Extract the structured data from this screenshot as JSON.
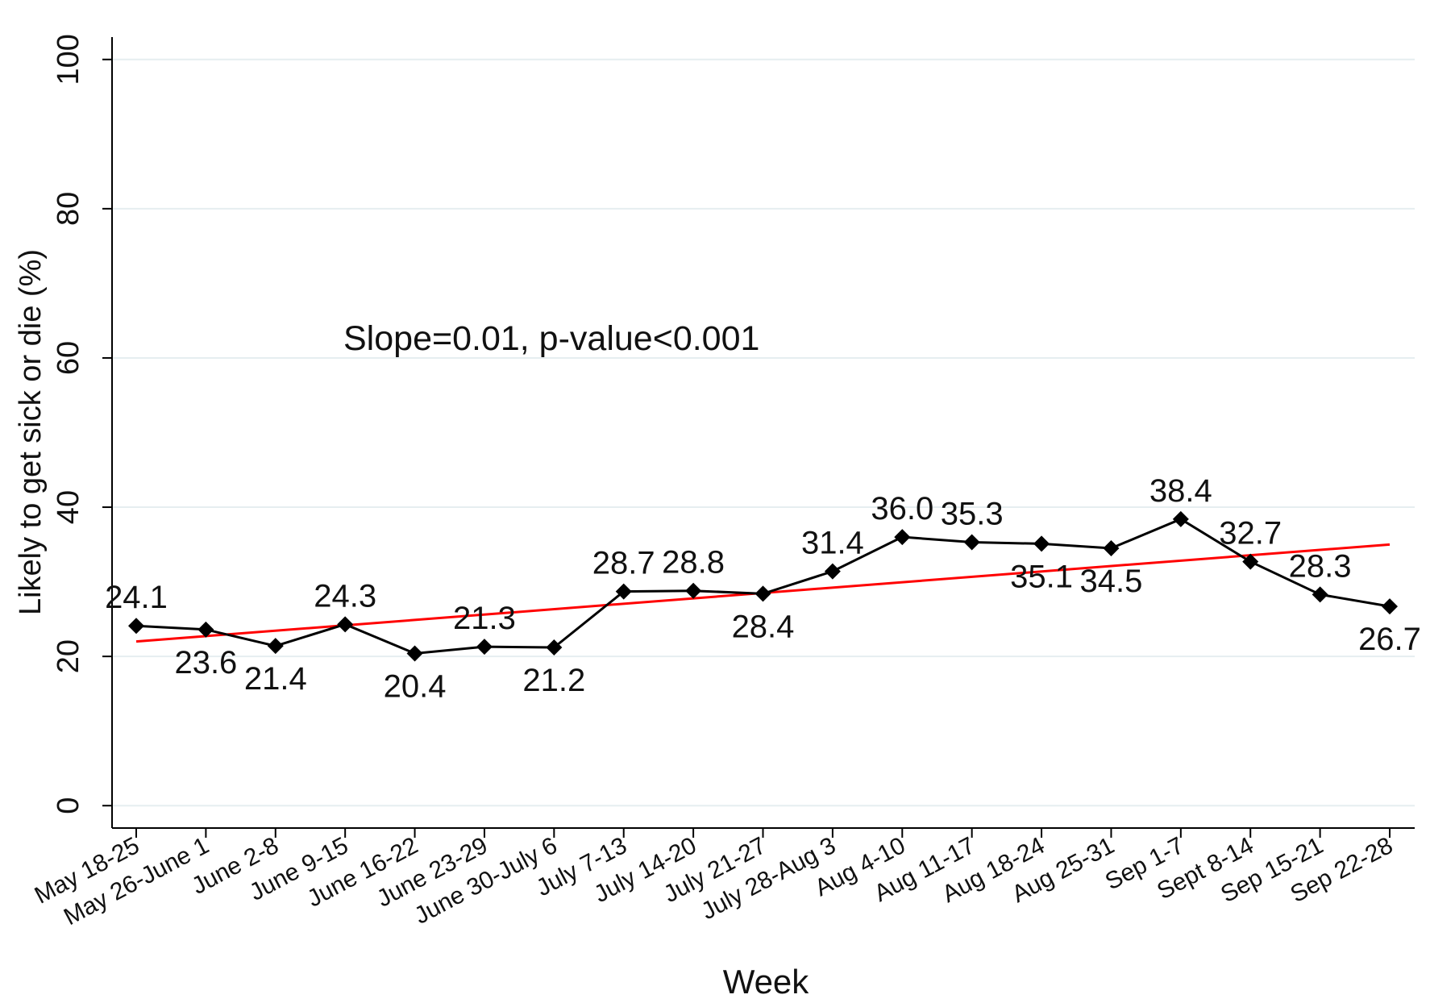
{
  "chart_data": {
    "type": "line",
    "x_label": "Week",
    "y_label": "Likely to get sick or die (%)",
    "annotation": "Slope=0.01, p-value<0.001",
    "categories": [
      "May 18-25",
      "May 26-June 1",
      "June 2-8",
      "June 9-15",
      "June 16-22",
      "June 23-29",
      "June 30-July 6",
      "July 7-13",
      "July 14-20",
      "July 21-27",
      "July 28-Aug 3",
      "Aug 4-10",
      "Aug 11-17",
      "Aug 18-24",
      "Aug 25-31",
      "Sep 1-7",
      "Sept 8-14",
      "Sep 15-21",
      "Sep 22-28"
    ],
    "series": [
      {
        "color": "#000000",
        "values": [
          24.1,
          23.6,
          21.4,
          24.3,
          20.4,
          21.3,
          21.2,
          28.7,
          28.8,
          28.4,
          31.4,
          36.0,
          35.3,
          35.1,
          34.5,
          38.4,
          32.7,
          28.3,
          26.7
        ],
        "value_labels": [
          "24.1",
          "23.6",
          "21.4",
          "24.3",
          "20.4",
          "21.3",
          "21.2",
          "28.7",
          "28.8",
          "28.4",
          "31.4",
          "36.0",
          "35.3",
          "35.1",
          "34.5",
          "38.4",
          "32.7",
          "28.3",
          "26.7"
        ]
      }
    ],
    "trend_line": {
      "color": "#ff0000",
      "start": 22.0,
      "end": 35.0
    },
    "ylim": [
      -3,
      103
    ],
    "yticks": [
      0,
      20,
      40,
      60,
      80,
      100
    ],
    "grid": true
  }
}
